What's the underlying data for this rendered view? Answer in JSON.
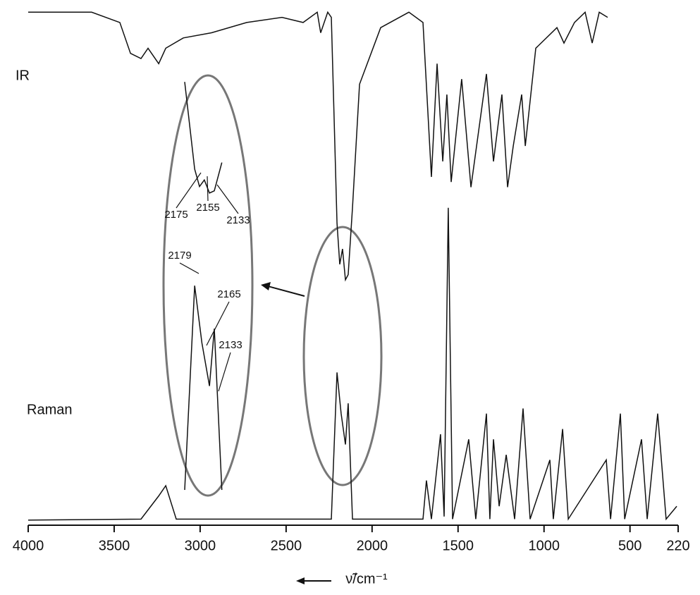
{
  "chart_data": {
    "type": "line",
    "x_label": "ν̃/cm⁻¹",
    "xlim": [
      4000,
      220
    ],
    "xticks": [
      4000,
      3500,
      3000,
      2500,
      2000,
      1500,
      1000,
      500,
      220
    ],
    "ylim": [
      0,
      100
    ],
    "annotations": [
      "2175",
      "2155",
      "2133",
      "2179",
      "2165",
      "2133"
    ],
    "series": [
      {
        "name": "IR",
        "color": "#111111",
        "x": [
          4000,
          3631,
          3467,
          3405,
          3344,
          3303,
          3241,
          3200,
          3098,
          2934,
          2729,
          2524,
          2401,
          2319,
          2299,
          2258,
          2237,
          2204,
          2188,
          2172,
          2155,
          2139,
          2114,
          2073,
          1950,
          1786,
          1704,
          1655,
          1622,
          1589,
          1565,
          1540,
          1479,
          1425,
          1335,
          1294,
          1245,
          1212,
          1179,
          1130,
          1109,
          1048,
          925,
          884,
          823,
          761,
          720,
          679,
          630
        ],
        "values": [
          99,
          99,
          97,
          91,
          90,
          92,
          89,
          92,
          94,
          95,
          97,
          98,
          97,
          99,
          95,
          99,
          98,
          58,
          50,
          53,
          47,
          48,
          61,
          85,
          96,
          99,
          97,
          67,
          89,
          70,
          83,
          66,
          86,
          65,
          87,
          70,
          83,
          65,
          73,
          83,
          73,
          92,
          96,
          93,
          97,
          99,
          93,
          99,
          98
        ]
      },
      {
        "name": "Raman",
        "color": "#111111",
        "x": [
          4000,
          3344,
          3241,
          3200,
          3139,
          2237,
          2204,
          2180,
          2155,
          2139,
          2114,
          1704,
          1684,
          1655,
          1602,
          1581,
          1557,
          1532,
          1438,
          1397,
          1335,
          1315,
          1294,
          1261,
          1220,
          1171,
          1122,
          1081,
          966,
          946,
          892,
          859,
          638,
          613,
          556,
          531,
          433,
          400,
          339,
          290,
          228
        ],
        "values": [
          0.3,
          0.5,
          5,
          7,
          0.5,
          0.5,
          29,
          21,
          15,
          23,
          0.5,
          0.5,
          8,
          0.5,
          17,
          1,
          61,
          0.5,
          16,
          0.5,
          21,
          0.5,
          16,
          3,
          13,
          0.5,
          22,
          0.5,
          12,
          0.5,
          18,
          0.5,
          12,
          0.5,
          21,
          0.5,
          16,
          0.5,
          21,
          0.5,
          3
        ]
      }
    ]
  }
}
